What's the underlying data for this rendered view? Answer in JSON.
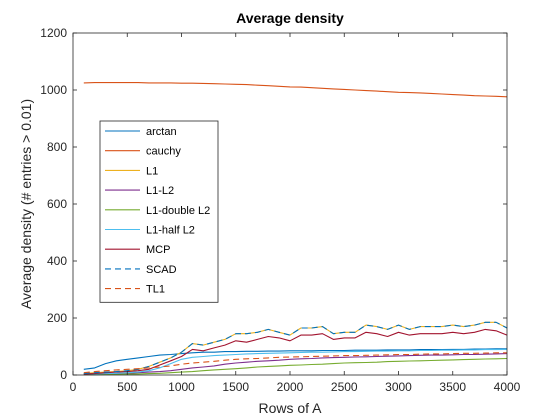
{
  "chart_data": {
    "type": "line",
    "title": "Average density",
    "xlabel": "Rows of A",
    "ylabel": "Average density (# entries > 0.01)",
    "xlim": [
      0,
      4000
    ],
    "ylim": [
      0,
      1200
    ],
    "xticks": [
      0,
      500,
      1000,
      1500,
      2000,
      2500,
      3000,
      3500,
      4000
    ],
    "yticks": [
      0,
      200,
      400,
      600,
      800,
      1000,
      1200
    ],
    "grid": false,
    "legend_position": "upper-left",
    "x": [
      100,
      200,
      300,
      400,
      500,
      600,
      700,
      800,
      900,
      1000,
      1100,
      1200,
      1300,
      1400,
      1500,
      1600,
      1700,
      1800,
      1900,
      2000,
      2100,
      2200,
      2300,
      2400,
      2500,
      2600,
      2700,
      2800,
      2900,
      3000,
      3100,
      3200,
      3300,
      3400,
      3500,
      3600,
      3700,
      3800,
      3900,
      4000
    ],
    "series": [
      {
        "name": "arctan",
        "color": "#0072BD",
        "dash": "solid",
        "values": [
          20,
          25,
          40,
          50,
          55,
          60,
          65,
          70,
          72,
          75,
          78,
          80,
          80,
          82,
          82,
          83,
          83,
          84,
          84,
          85,
          85,
          85,
          86,
          86,
          86,
          87,
          87,
          87,
          88,
          88,
          88,
          89,
          89,
          89,
          90,
          90,
          91,
          91,
          92,
          92
        ]
      },
      {
        "name": "cauchy",
        "color": "#D95319",
        "dash": "solid",
        "values": [
          1025,
          1026,
          1026,
          1026,
          1026,
          1026,
          1025,
          1025,
          1025,
          1024,
          1024,
          1023,
          1022,
          1021,
          1020,
          1019,
          1017,
          1015,
          1013,
          1011,
          1010,
          1008,
          1006,
          1004,
          1002,
          1000,
          998,
          996,
          994,
          992,
          991,
          990,
          988,
          986,
          984,
          982,
          980,
          979,
          978,
          976
        ]
      },
      {
        "name": "L1",
        "color": "#EDB120",
        "dash": "solid",
        "values": [
          5,
          8,
          10,
          12,
          15,
          20,
          30,
          45,
          60,
          80,
          110,
          105,
          115,
          125,
          145,
          145,
          150,
          160,
          150,
          140,
          165,
          165,
          170,
          145,
          150,
          150,
          175,
          170,
          160,
          175,
          160,
          170,
          170,
          170,
          175,
          170,
          175,
          185,
          185,
          165
        ]
      },
      {
        "name": "L1-L2",
        "color": "#7E2F8E",
        "dash": "solid",
        "values": [
          2,
          3,
          4,
          5,
          6,
          8,
          10,
          12,
          15,
          20,
          25,
          28,
          32,
          38,
          42,
          45,
          48,
          50,
          52,
          55,
          57,
          58,
          60,
          61,
          62,
          63,
          64,
          65,
          66,
          67,
          68,
          69,
          70,
          70,
          71,
          72,
          72,
          73,
          74,
          75
        ]
      },
      {
        "name": "L1-double L2",
        "color": "#77AC30",
        "dash": "solid",
        "values": [
          1,
          1,
          2,
          2,
          3,
          4,
          5,
          6,
          8,
          10,
          12,
          15,
          18,
          20,
          22,
          25,
          28,
          30,
          32,
          34,
          35,
          37,
          38,
          40,
          42,
          43,
          44,
          45,
          47,
          48,
          49,
          50,
          51,
          52,
          53,
          54,
          55,
          56,
          57,
          58
        ]
      },
      {
        "name": "L1-half L2",
        "color": "#4DBEEE",
        "dash": "solid",
        "values": [
          3,
          4,
          5,
          6,
          8,
          10,
          15,
          25,
          40,
          55,
          62,
          65,
          68,
          70,
          72,
          74,
          75,
          76,
          77,
          78,
          79,
          80,
          80,
          81,
          82,
          82,
          83,
          84,
          84,
          85,
          85,
          86,
          86,
          87,
          87,
          88,
          88,
          89,
          89,
          90
        ]
      },
      {
        "name": "MCP",
        "color": "#A2142F",
        "dash": "solid",
        "values": [
          3,
          5,
          8,
          10,
          12,
          15,
          20,
          35,
          50,
          65,
          90,
          85,
          95,
          105,
          120,
          115,
          125,
          135,
          130,
          120,
          140,
          140,
          145,
          125,
          130,
          130,
          150,
          145,
          135,
          150,
          140,
          145,
          145,
          145,
          150,
          145,
          150,
          160,
          155,
          140
        ]
      },
      {
        "name": "SCAD",
        "color": "#0072BD",
        "dash": "dashed",
        "values": [
          5,
          8,
          10,
          12,
          15,
          20,
          30,
          45,
          60,
          80,
          110,
          105,
          115,
          125,
          145,
          145,
          150,
          160,
          150,
          140,
          165,
          165,
          170,
          145,
          150,
          150,
          175,
          170,
          160,
          175,
          160,
          170,
          170,
          170,
          175,
          170,
          175,
          185,
          185,
          165
        ]
      },
      {
        "name": "TL1",
        "color": "#D95319",
        "dash": "dashed",
        "values": [
          8,
          12,
          15,
          18,
          20,
          22,
          25,
          28,
          32,
          38,
          42,
          45,
          48,
          52,
          55,
          57,
          58,
          60,
          62,
          63,
          64,
          65,
          66,
          67,
          68,
          68,
          69,
          70,
          71,
          72,
          72,
          73,
          74,
          74,
          75,
          76,
          76,
          77,
          78,
          78
        ]
      }
    ]
  }
}
